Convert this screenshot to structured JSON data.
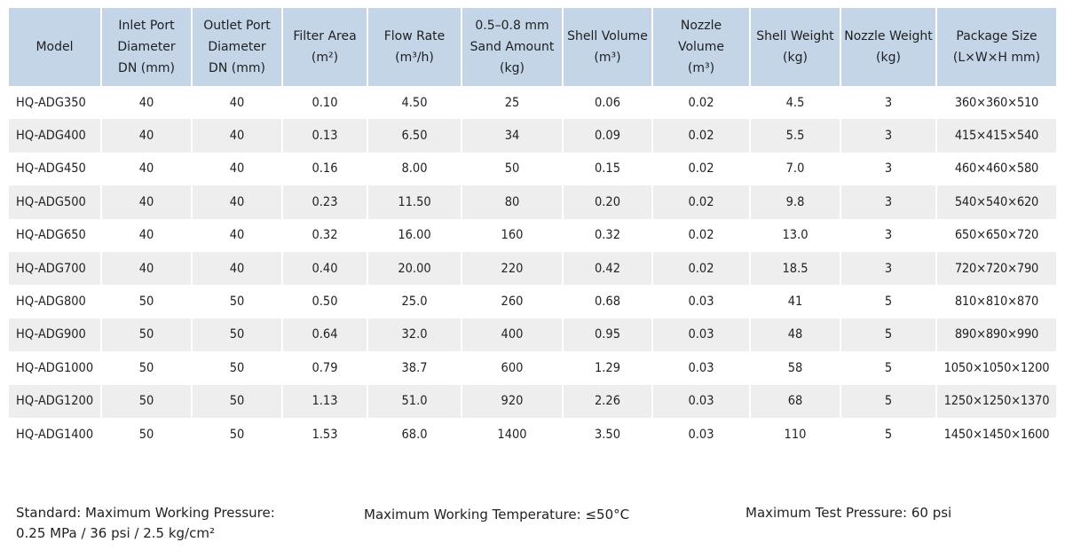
{
  "table": {
    "headers": [
      [
        "Model"
      ],
      [
        "Inlet Port",
        "Diameter",
        "DN (mm)"
      ],
      [
        "Outlet Port",
        "Diameter",
        "DN (mm)"
      ],
      [
        "Filter Area",
        "(m²)"
      ],
      [
        "Flow Rate",
        "(m³/h)"
      ],
      [
        "0.5–0.8 mm",
        "Sand Amount",
        "(kg)"
      ],
      [
        "Shell Volume",
        "(m³)"
      ],
      [
        "Nozzle Volume",
        "(m³)"
      ],
      [
        "Shell Weight",
        "(kg)"
      ],
      [
        "Nozzle Weight",
        "(kg)"
      ],
      [
        "Package Size",
        "(L×W×H mm)"
      ]
    ],
    "rows": [
      [
        "HQ-ADG350",
        "40",
        "40",
        "0.10",
        "4.50",
        "25",
        "0.06",
        "0.02",
        "4.5",
        "3",
        "360×360×510"
      ],
      [
        "HQ-ADG400",
        "40",
        "40",
        "0.13",
        "6.50",
        "34",
        "0.09",
        "0.02",
        "5.5",
        "3",
        "415×415×540"
      ],
      [
        "HQ-ADG450",
        "40",
        "40",
        "0.16",
        "8.00",
        "50",
        "0.15",
        "0.02",
        "7.0",
        "3",
        "460×460×580"
      ],
      [
        "HQ-ADG500",
        "40",
        "40",
        "0.23",
        "11.50",
        "80",
        "0.20",
        "0.02",
        "9.8",
        "3",
        "540×540×620"
      ],
      [
        "HQ-ADG650",
        "40",
        "40",
        "0.32",
        "16.00",
        "160",
        "0.32",
        "0.02",
        "13.0",
        "3",
        "650×650×720"
      ],
      [
        "HQ-ADG700",
        "40",
        "40",
        "0.40",
        "20.00",
        "220",
        "0.42",
        "0.02",
        "18.5",
        "3",
        "720×720×790"
      ],
      [
        "HQ-ADG800",
        "50",
        "50",
        "0.50",
        "25.0",
        "260",
        "0.68",
        "0.03",
        "41",
        "5",
        "810×810×870"
      ],
      [
        "HQ-ADG900",
        "50",
        "50",
        "0.64",
        "32.0",
        "400",
        "0.95",
        "0.03",
        "48",
        "5",
        "890×890×990"
      ],
      [
        "HQ-ADG1000",
        "50",
        "50",
        "0.79",
        "38.7",
        "600",
        "1.29",
        "0.03",
        "58",
        "5",
        "1050×1050×1200"
      ],
      [
        "HQ-ADG1200",
        "50",
        "50",
        "1.13",
        "51.0",
        "920",
        "2.26",
        "0.03",
        "68",
        "5",
        "1250×1250×1370"
      ],
      [
        "HQ-ADG1400",
        "50",
        "50",
        "1.53",
        "68.0",
        "1400",
        "3.50",
        "0.03",
        "110",
        "5",
        "1450×1450×1600"
      ]
    ]
  },
  "footer": {
    "standard_line1": "Standard: Maximum Working Pressure:",
    "standard_line2": "0.25 MPa / 36 psi / 2.5 kg/cm²",
    "max_working_temp": "Maximum Working Temperature: ≤50°C",
    "max_test_pressure": "Maximum Test Pressure: 60 psi"
  }
}
